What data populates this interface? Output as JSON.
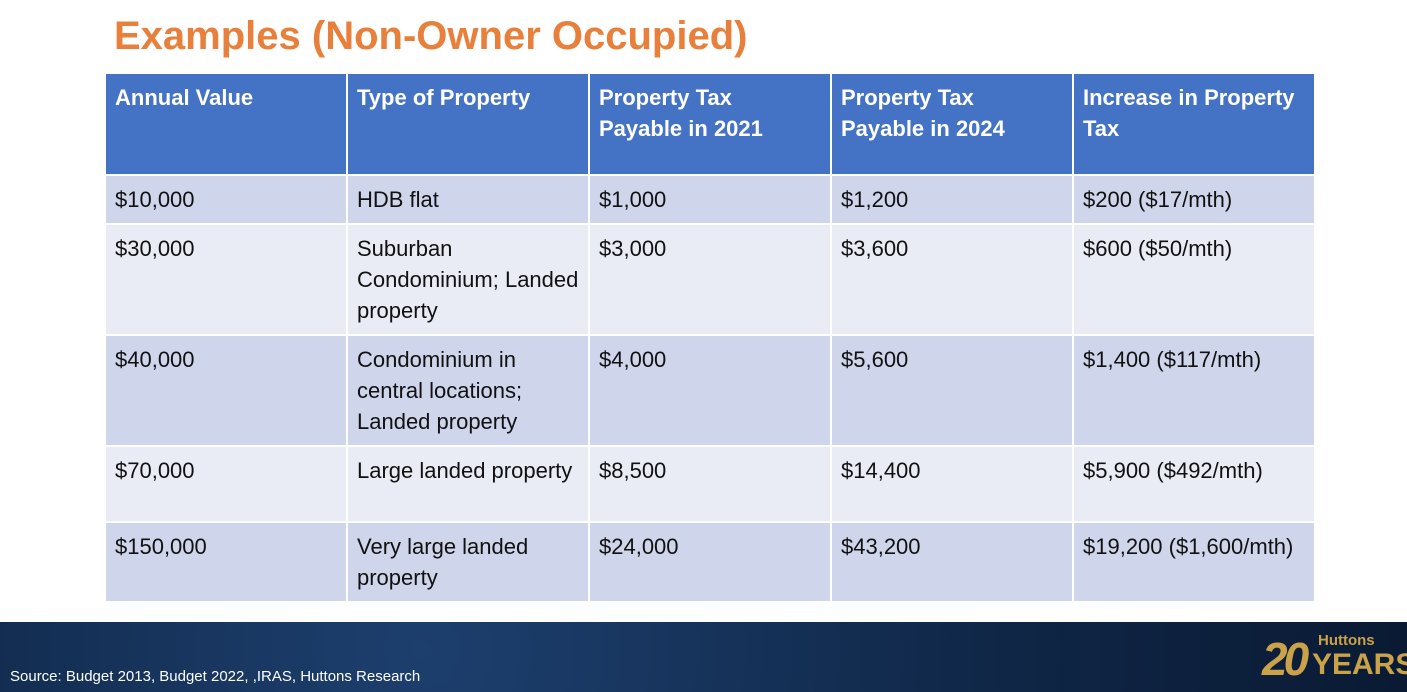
{
  "title": "Examples (Non-Owner Occupied)",
  "table": {
    "header": [
      "Annual Value",
      "Type of Property",
      "Property Tax Payable in 2021",
      "Property Tax Payable in 2024",
      "Increase in Property Tax"
    ],
    "rows": [
      [
        "$10,000",
        "HDB flat",
        "$1,000",
        "$1,200",
        "$200 ($17/mth)"
      ],
      [
        "$30,000",
        "Suburban Condominium; Landed property",
        "$3,000",
        "$3,600",
        "$600 ($50/mth)"
      ],
      [
        "$40,000",
        "Condominium in central locations; Landed property",
        "$4,000",
        "$5,600",
        "$1,400 ($117/mth)"
      ],
      [
        "$70,000",
        "Large landed property",
        "$8,500",
        "$14,400",
        "$5,900 ($492/mth)"
      ],
      [
        "$150,000",
        "Very large landed property",
        "$24,000",
        "$43,200",
        "$19,200 ($1,600/mth)"
      ]
    ]
  },
  "footer": {
    "source": "Source: Budget 2013, Budget 2022, ,IRAS, Huttons Research",
    "logo": {
      "number": "20",
      "brand": "Huttons",
      "years": "YEARS"
    }
  }
}
